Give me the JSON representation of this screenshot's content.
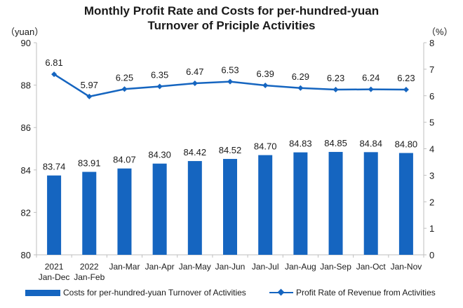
{
  "title_line1": "Monthly Profit Rate and Costs for per-hundred-yuan",
  "title_line2": "Turnover of Priciple Activities",
  "colors": {
    "bar": "#1565C0",
    "line": "#1565C0",
    "axis": "#bfbfbf",
    "text": "#1a1a1a"
  },
  "legend": {
    "bar_label": "Costs for per-hundred-yuan Turnover of Activities",
    "line_label": "Profit Rate of Revenue from Activities"
  },
  "chart_data": {
    "type": "bar",
    "categories": [
      [
        "2021",
        "Jan-Dec"
      ],
      [
        "2022",
        "Jan-Feb"
      ],
      [
        "Jan-Mar"
      ],
      [
        "Jan-Apr"
      ],
      [
        "Jan-May"
      ],
      [
        "Jan-Jun"
      ],
      [
        "Jan-Jul"
      ],
      [
        "Jan-Aug"
      ],
      [
        "Jan-Sep"
      ],
      [
        "Jan-Oct"
      ],
      [
        "Jan-Nov"
      ]
    ],
    "y_left": {
      "label": "（yuan）",
      "min": 80,
      "max": 90,
      "ticks": [
        80,
        82,
        84,
        86,
        88,
        90
      ]
    },
    "y_right": {
      "label": "（%）",
      "min": 0,
      "max": 8,
      "ticks": [
        0,
        1,
        2,
        3,
        4,
        5,
        6,
        7,
        8
      ]
    },
    "series": [
      {
        "name": "Costs for per-hundred-yuan Turnover of Activities",
        "type": "bar",
        "axis": "left",
        "values": [
          83.74,
          83.91,
          84.07,
          84.3,
          84.42,
          84.52,
          84.7,
          84.83,
          84.85,
          84.84,
          84.8
        ],
        "labels": [
          "83.74",
          "83.91",
          "84.07",
          "84.30",
          "84.42",
          "84.52",
          "84.70",
          "84.83",
          "84.85",
          "84.84",
          "84.80"
        ]
      },
      {
        "name": "Profit Rate of Revenue from Activities",
        "type": "line",
        "axis": "right",
        "marker": "diamond",
        "values": [
          6.81,
          5.97,
          6.25,
          6.35,
          6.47,
          6.53,
          6.39,
          6.29,
          6.23,
          6.24,
          6.23
        ],
        "labels": [
          "6.81",
          "5.97",
          "6.25",
          "6.35",
          "6.47",
          "6.53",
          "6.39",
          "6.29",
          "6.23",
          "6.24",
          "6.23"
        ]
      }
    ],
    "grid": false,
    "legend_position": "bottom"
  }
}
